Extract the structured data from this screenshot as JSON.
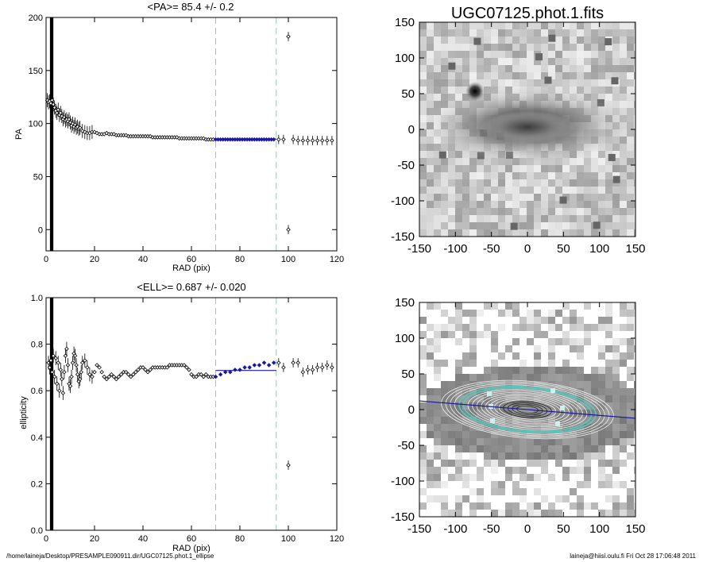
{
  "chart_data": [
    {
      "id": "pa",
      "type": "scatter",
      "title": "<PA>=  85.4 +/-   0.2",
      "xlabel": "RAD (pix)",
      "ylabel": "PA",
      "xlim": [
        0,
        120
      ],
      "ylim": [
        -20,
        200
      ],
      "xticks": [
        0,
        20,
        40,
        60,
        80,
        100,
        120
      ],
      "yticks": [
        0,
        50,
        100,
        150,
        200
      ],
      "vlines": [
        70,
        95
      ],
      "fit_range": [
        70,
        95
      ],
      "fit_value": 85.4,
      "points": [
        [
          0.5,
          122
        ],
        [
          1,
          120
        ],
        [
          1.5,
          121
        ],
        [
          2,
          119
        ],
        [
          2.5,
          122
        ],
        [
          3,
          118
        ],
        [
          3.5,
          115
        ],
        [
          4,
          112
        ],
        [
          4.5,
          110
        ],
        [
          5,
          113
        ],
        [
          5.5,
          108
        ],
        [
          6,
          110
        ],
        [
          6.5,
          107
        ],
        [
          7,
          104
        ],
        [
          7.5,
          106
        ],
        [
          8,
          103
        ],
        [
          8.5,
          104
        ],
        [
          9,
          102
        ],
        [
          9.5,
          104
        ],
        [
          10,
          101
        ],
        [
          10.5,
          98
        ],
        [
          11,
          100
        ],
        [
          11.5,
          97
        ],
        [
          12,
          99
        ],
        [
          12.5,
          96
        ],
        [
          13,
          97
        ],
        [
          13.5,
          95
        ],
        [
          14,
          96
        ],
        [
          15,
          93
        ],
        [
          16,
          92
        ],
        [
          17,
          91
        ],
        [
          18,
          91
        ],
        [
          19,
          92
        ],
        [
          20,
          92
        ],
        [
          21,
          91
        ],
        [
          22,
          90
        ],
        [
          23,
          90
        ],
        [
          24,
          90
        ],
        [
          25,
          91
        ],
        [
          26,
          90
        ],
        [
          27,
          90
        ],
        [
          28,
          90
        ],
        [
          29,
          89
        ],
        [
          30,
          89
        ],
        [
          31,
          89
        ],
        [
          32,
          89
        ],
        [
          33,
          89
        ],
        [
          34,
          88
        ],
        [
          35,
          88
        ],
        [
          36,
          88
        ],
        [
          37,
          88
        ],
        [
          38,
          88
        ],
        [
          39,
          88
        ],
        [
          40,
          88
        ],
        [
          41,
          88
        ],
        [
          42,
          88
        ],
        [
          43,
          88
        ],
        [
          44,
          87
        ],
        [
          45,
          87
        ],
        [
          46,
          87
        ],
        [
          47,
          87
        ],
        [
          48,
          87
        ],
        [
          49,
          87
        ],
        [
          50,
          87
        ],
        [
          51,
          87
        ],
        [
          52,
          87
        ],
        [
          53,
          87
        ],
        [
          54,
          87
        ],
        [
          55,
          86
        ],
        [
          56,
          86
        ],
        [
          57,
          86
        ],
        [
          58,
          86
        ],
        [
          59,
          86
        ],
        [
          60,
          86
        ],
        [
          61,
          86
        ],
        [
          62,
          86
        ],
        [
          63,
          86
        ],
        [
          64,
          86
        ],
        [
          65,
          86
        ],
        [
          66,
          85
        ],
        [
          67,
          85
        ],
        [
          68,
          85
        ],
        [
          69,
          85
        ],
        [
          70,
          85
        ],
        [
          71,
          85
        ],
        [
          72,
          85
        ],
        [
          73,
          85
        ],
        [
          74,
          85
        ],
        [
          75,
          85
        ],
        [
          76,
          85
        ],
        [
          77,
          85
        ],
        [
          78,
          85
        ],
        [
          79,
          85
        ],
        [
          80,
          85
        ],
        [
          81,
          85
        ],
        [
          82,
          85
        ],
        [
          83,
          85
        ],
        [
          84,
          85
        ],
        [
          85,
          85
        ],
        [
          86,
          85
        ],
        [
          87,
          85
        ],
        [
          88,
          85
        ],
        [
          89,
          85
        ],
        [
          90,
          85
        ],
        [
          91,
          85
        ],
        [
          92,
          85
        ],
        [
          93,
          85
        ],
        [
          94,
          85
        ],
        [
          96,
          85
        ],
        [
          98,
          85
        ],
        [
          100,
          182
        ],
        [
          100,
          0
        ],
        [
          102,
          85
        ],
        [
          104,
          84
        ],
        [
          106,
          84
        ],
        [
          108,
          84
        ],
        [
          110,
          84
        ],
        [
          112,
          84
        ],
        [
          114,
          84
        ],
        [
          116,
          84
        ],
        [
          118,
          84
        ]
      ]
    },
    {
      "id": "ell",
      "type": "scatter",
      "title": "<ELL>= 0.687 +/-  0.020",
      "xlabel": "RAD (pix)",
      "ylabel": "ellipticity",
      "xlim": [
        0,
        120
      ],
      "ylim": [
        0.0,
        1.0
      ],
      "xticks": [
        0,
        20,
        40,
        60,
        80,
        100,
        120
      ],
      "yticks": [
        0.0,
        0.2,
        0.4,
        0.6,
        0.8,
        1.0
      ],
      "vlines": [
        70,
        95
      ],
      "fit_range": [
        70,
        95
      ],
      "fit_value": 0.687,
      "points": [
        [
          1,
          0.72
        ],
        [
          1.5,
          0.7
        ],
        [
          2,
          0.73
        ],
        [
          2.5,
          0.68
        ],
        [
          3,
          0.75
        ],
        [
          3.5,
          0.66
        ],
        [
          4,
          0.74
        ],
        [
          4.5,
          0.63
        ],
        [
          5,
          0.72
        ],
        [
          5.5,
          0.6
        ],
        [
          6,
          0.69
        ],
        [
          6.5,
          0.65
        ],
        [
          7,
          0.59
        ],
        [
          7.5,
          0.68
        ],
        [
          8,
          0.75
        ],
        [
          8.5,
          0.78
        ],
        [
          9,
          0.71
        ],
        [
          9.5,
          0.63
        ],
        [
          10,
          0.62
        ],
        [
          10.5,
          0.66
        ],
        [
          11,
          0.72
        ],
        [
          11.5,
          0.76
        ],
        [
          12,
          0.75
        ],
        [
          12.5,
          0.71
        ],
        [
          13,
          0.67
        ],
        [
          13.5,
          0.64
        ],
        [
          14,
          0.65
        ],
        [
          14.5,
          0.68
        ],
        [
          15,
          0.72
        ],
        [
          16,
          0.73
        ],
        [
          17,
          0.7
        ],
        [
          18,
          0.67
        ],
        [
          19,
          0.66
        ],
        [
          20,
          0.68
        ],
        [
          21,
          0.71
        ],
        [
          22,
          0.7
        ],
        [
          23,
          0.68
        ],
        [
          24,
          0.66
        ],
        [
          25,
          0.65
        ],
        [
          26,
          0.66
        ],
        [
          27,
          0.67
        ],
        [
          28,
          0.66
        ],
        [
          29,
          0.65
        ],
        [
          30,
          0.66
        ],
        [
          31,
          0.67
        ],
        [
          32,
          0.68
        ],
        [
          33,
          0.68
        ],
        [
          34,
          0.67
        ],
        [
          35,
          0.66
        ],
        [
          36,
          0.67
        ],
        [
          37,
          0.68
        ],
        [
          38,
          0.69
        ],
        [
          39,
          0.7
        ],
        [
          40,
          0.7
        ],
        [
          41,
          0.69
        ],
        [
          42,
          0.68
        ],
        [
          43,
          0.69
        ],
        [
          44,
          0.7
        ],
        [
          45,
          0.7
        ],
        [
          46,
          0.7
        ],
        [
          47,
          0.7
        ],
        [
          48,
          0.7
        ],
        [
          49,
          0.7
        ],
        [
          50,
          0.7
        ],
        [
          51,
          0.71
        ],
        [
          52,
          0.71
        ],
        [
          53,
          0.71
        ],
        [
          54,
          0.71
        ],
        [
          55,
          0.71
        ],
        [
          56,
          0.71
        ],
        [
          57,
          0.71
        ],
        [
          58,
          0.7
        ],
        [
          59,
          0.69
        ],
        [
          60,
          0.67
        ],
        [
          61,
          0.66
        ],
        [
          62,
          0.66
        ],
        [
          63,
          0.67
        ],
        [
          64,
          0.67
        ],
        [
          65,
          0.66
        ],
        [
          66,
          0.67
        ],
        [
          67,
          0.66
        ],
        [
          68,
          0.66
        ],
        [
          69,
          0.66
        ],
        [
          70,
          0.66
        ],
        [
          72,
          0.67
        ],
        [
          74,
          0.68
        ],
        [
          76,
          0.68
        ],
        [
          78,
          0.69
        ],
        [
          80,
          0.69
        ],
        [
          82,
          0.7
        ],
        [
          84,
          0.7
        ],
        [
          86,
          0.71
        ],
        [
          88,
          0.71
        ],
        [
          90,
          0.72
        ],
        [
          92,
          0.71
        ],
        [
          94,
          0.72
        ],
        [
          96,
          0.72
        ],
        [
          98,
          0.7
        ],
        [
          100,
          0.28
        ],
        [
          102,
          0.72
        ],
        [
          104,
          0.72
        ],
        [
          106,
          0.68
        ],
        [
          108,
          0.69
        ],
        [
          110,
          0.69
        ],
        [
          112,
          0.7
        ],
        [
          114,
          0.7
        ],
        [
          116,
          0.71
        ],
        [
          118,
          0.7
        ]
      ]
    },
    {
      "id": "image",
      "type": "heatmap",
      "title": "UGC07125.phot.1.fits",
      "xlim": [
        -150,
        150
      ],
      "ylim": [
        -150,
        150
      ],
      "xticks": [
        -150,
        -100,
        -50,
        0,
        50,
        100,
        150
      ],
      "yticks": [
        -150,
        -100,
        -50,
        0,
        50,
        100,
        150
      ]
    },
    {
      "id": "contour",
      "type": "heatmap",
      "title": "",
      "xlim": [
        -150,
        150
      ],
      "ylim": [
        -150,
        150
      ],
      "xticks": [
        -150,
        -100,
        -50,
        0,
        50,
        100,
        150
      ],
      "yticks": [
        -150,
        -100,
        -50,
        0,
        50,
        100,
        150
      ],
      "pa_line_angle_deg": 85.4
    }
  ],
  "colors": {
    "fit": "#1a1a9e",
    "vline": "#66ddc8",
    "points": "#000000",
    "ring_accent": "#5cc8c0"
  },
  "footer": {
    "path": "/home/laineja/Desktop/PRESAMPLE090911.dir/UGC07125.phot.1_ellipse",
    "user_date": "laineja@hiisi.oulu.fi  Fri Oct 28 17:06:48 2011"
  }
}
